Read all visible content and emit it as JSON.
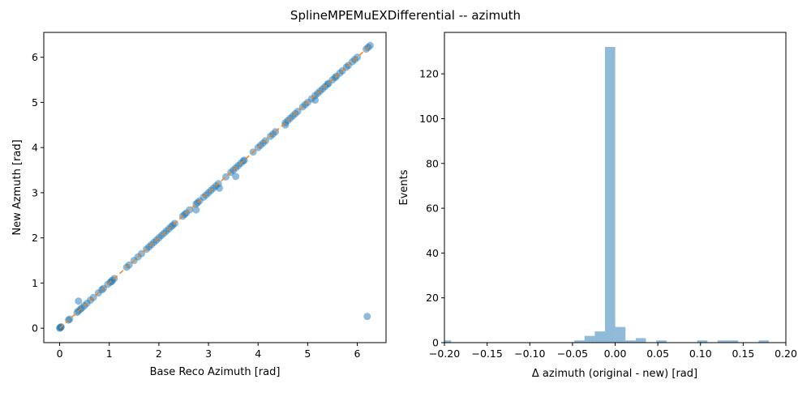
{
  "figure": {
    "title": "SplineMPEMuEXDifferential -- azimuth"
  },
  "colors": {
    "scatter_points": "#1f77b4",
    "reference_line": "#ff7f0e",
    "histogram_bars": "#1f77b4",
    "axes": "#000000",
    "background": "#ffffff"
  },
  "chart_data": [
    {
      "type": "scatter",
      "xlabel": "Base Reco Azimuth [rad]",
      "ylabel": "New Azmuth [rad]",
      "xlim": [
        -0.32,
        6.58
      ],
      "ylim": [
        -0.32,
        6.55
      ],
      "xticks": [
        0,
        1,
        2,
        3,
        4,
        5,
        6
      ],
      "yticks": [
        0,
        1,
        2,
        3,
        4,
        5,
        6
      ],
      "grid": false,
      "marker_alpha": 0.5,
      "reference_line": {
        "style": "dashed",
        "from": [
          0,
          0
        ],
        "to": [
          6.28,
          6.28
        ]
      },
      "x": [
        0.0,
        0.01,
        0.02,
        0.03,
        0.18,
        0.2,
        0.35,
        0.38,
        0.42,
        0.45,
        0.5,
        0.55,
        0.62,
        0.68,
        0.78,
        0.85,
        0.88,
        0.97,
        1.02,
        1.06,
        1.1,
        1.35,
        1.4,
        1.5,
        1.58,
        1.65,
        1.75,
        1.8,
        1.85,
        1.9,
        1.95,
        2.0,
        2.05,
        2.1,
        2.15,
        2.2,
        2.25,
        2.28,
        2.32,
        2.48,
        2.52,
        2.55,
        2.62,
        2.75,
        2.78,
        2.82,
        2.9,
        2.95,
        3.0,
        3.05,
        3.1,
        3.15,
        3.2,
        3.35,
        3.45,
        3.5,
        3.55,
        3.6,
        3.65,
        3.7,
        3.72,
        3.9,
        4.0,
        4.05,
        4.1,
        4.15,
        4.25,
        4.3,
        4.35,
        4.55,
        4.6,
        4.65,
        4.7,
        4.75,
        4.8,
        4.9,
        4.95,
        5.0,
        5.08,
        5.15,
        5.2,
        5.25,
        5.3,
        5.35,
        5.4,
        5.42,
        5.5,
        5.55,
        5.58,
        5.65,
        5.7,
        5.78,
        5.82,
        5.9,
        5.95,
        6.0,
        6.18,
        6.22,
        6.26,
        0.38,
        1.05,
        2.75,
        3.22,
        3.55,
        4.55,
        5.15,
        6.2
      ],
      "y": [
        0.0,
        0.01,
        0.02,
        0.03,
        0.18,
        0.2,
        0.35,
        0.38,
        0.42,
        0.45,
        0.5,
        0.55,
        0.62,
        0.68,
        0.78,
        0.85,
        0.88,
        0.97,
        1.02,
        1.06,
        1.1,
        1.35,
        1.4,
        1.5,
        1.58,
        1.65,
        1.75,
        1.8,
        1.85,
        1.9,
        1.95,
        2.0,
        2.05,
        2.1,
        2.15,
        2.2,
        2.25,
        2.28,
        2.32,
        2.48,
        2.52,
        2.55,
        2.62,
        2.75,
        2.78,
        2.82,
        2.9,
        2.95,
        3.0,
        3.05,
        3.1,
        3.15,
        3.2,
        3.35,
        3.45,
        3.5,
        3.55,
        3.6,
        3.65,
        3.7,
        3.72,
        3.9,
        4.0,
        4.05,
        4.1,
        4.15,
        4.25,
        4.3,
        4.35,
        4.55,
        4.6,
        4.65,
        4.7,
        4.75,
        4.8,
        4.9,
        4.95,
        5.0,
        5.08,
        5.15,
        5.2,
        5.25,
        5.3,
        5.35,
        5.4,
        5.42,
        5.5,
        5.55,
        5.58,
        5.65,
        5.7,
        5.78,
        5.82,
        5.9,
        5.95,
        6.0,
        6.18,
        6.22,
        6.26,
        0.6,
        1.03,
        2.62,
        3.1,
        3.36,
        4.5,
        5.05,
        0.26
      ]
    },
    {
      "type": "histogram",
      "xlabel": "Δ azimuth (original - new) [rad]",
      "ylabel": "Events",
      "xlim": [
        -0.2,
        0.2
      ],
      "ylim": [
        0,
        138.5
      ],
      "xticks": [
        -0.2,
        -0.15,
        -0.1,
        -0.05,
        0.0,
        0.05,
        0.1,
        0.15,
        0.2
      ],
      "xtick_labels": [
        "−0.20",
        "−0.15",
        "−0.10",
        "−0.05",
        "0.00",
        "0.05",
        "0.10",
        "0.15",
        "0.20"
      ],
      "yticks": [
        0,
        20,
        40,
        60,
        80,
        100,
        120
      ],
      "grid": false,
      "bar_alpha": 0.5,
      "bins": [
        {
          "x0": -0.2,
          "x1": -0.1921,
          "count": 1
        },
        {
          "x0": -0.0479,
          "x1": -0.0359,
          "count": 1
        },
        {
          "x0": -0.0359,
          "x1": -0.0239,
          "count": 3
        },
        {
          "x0": -0.0239,
          "x1": -0.0119,
          "count": 5
        },
        {
          "x0": -0.0119,
          "x1": 0.0001,
          "count": 132
        },
        {
          "x0": 0.0001,
          "x1": 0.0121,
          "count": 7
        },
        {
          "x0": 0.0121,
          "x1": 0.0241,
          "count": 1
        },
        {
          "x0": 0.0241,
          "x1": 0.0361,
          "count": 2
        },
        {
          "x0": 0.0481,
          "x1": 0.0601,
          "count": 1
        },
        {
          "x0": 0.0961,
          "x1": 0.1081,
          "count": 1
        },
        {
          "x0": 0.1201,
          "x1": 0.1321,
          "count": 1
        },
        {
          "x0": 0.1321,
          "x1": 0.1441,
          "count": 1
        },
        {
          "x0": 0.1681,
          "x1": 0.1801,
          "count": 1
        }
      ]
    }
  ]
}
